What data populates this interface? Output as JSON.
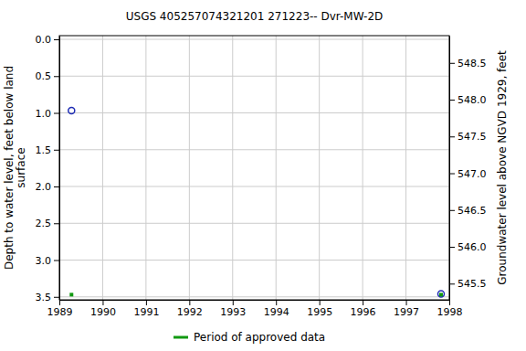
{
  "chart_data": {
    "type": "scatter",
    "title": "USGS 405257074321201 271223-- Dvr-MW-2D",
    "y_label": "Depth to water level, feet below land surface",
    "y2_label": "Groundwater level above NGVD 1929, feet",
    "x": [
      1989.28,
      1997.81
    ],
    "series": [
      {
        "color": "#1f2db4",
        "marker": "open-circle",
        "values": [
          0.97,
          3.46
        ]
      },
      {
        "name": "Period of approved data",
        "color": "#119911",
        "marker": "square",
        "values": [
          3.47,
          3.47
        ]
      }
    ],
    "xlim": [
      1989,
      1998
    ],
    "xticks": [
      1989,
      1990,
      1991,
      1992,
      1993,
      1994,
      1995,
      1996,
      1997,
      1998
    ],
    "ylim": [
      -0.05,
      3.54
    ],
    "yticks": [
      {
        "value": 0,
        "label": "0.0"
      },
      0.5,
      {
        "value": 1,
        "label": "1.0"
      },
      1.5,
      {
        "value": 2,
        "label": "2.0"
      },
      2.5,
      {
        "value": 3,
        "label": "3.0"
      },
      3.5
    ],
    "y2lim": [
      548.87,
      545.28
    ],
    "y2ticks": [
      548.5,
      {
        "value": 548,
        "label": "548.0"
      },
      547.5,
      {
        "value": 547,
        "label": "547.0"
      },
      546.5,
      {
        "value": 546,
        "label": "546.0"
      },
      545.5
    ],
    "grid": true,
    "legend": "bottom"
  }
}
